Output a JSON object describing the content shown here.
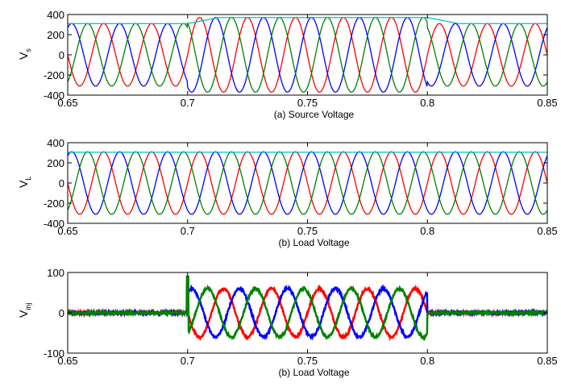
{
  "chart_data": [
    {
      "type": "line",
      "ylabel": "V",
      "ylabel_sub": "s",
      "caption": "(a) Source Voltage",
      "xlim": [
        0.65,
        0.85
      ],
      "ylim": [
        -400,
        400
      ],
      "xticks": [
        "0.65",
        "0.7",
        "0.75",
        "0.8",
        "0.85"
      ],
      "yticks": [
        "400",
        "200",
        "0",
        "-200",
        "-400"
      ],
      "grid": false,
      "waveform": {
        "frequency_hz": 50,
        "normal_amplitude": 310,
        "events": [
          {
            "t_start": 0.7,
            "t_end": 0.8,
            "amplitude": 370
          }
        ]
      },
      "series": [
        {
          "color": "#ff0000",
          "phase_deg": 0,
          "values": "three-phase sine"
        },
        {
          "color": "#0000ff",
          "phase_deg": -120,
          "values": "three-phase sine"
        },
        {
          "color": "#008000",
          "phase_deg": 120,
          "values": "three-phase sine"
        },
        {
          "color": "#00c0c0",
          "values": "envelope",
          "points": [
            [
              0.65,
              310
            ],
            [
              0.7,
              310
            ],
            [
              0.713,
              370
            ],
            [
              0.8,
              370
            ],
            [
              0.813,
              310
            ],
            [
              0.85,
              310
            ]
          ]
        }
      ]
    },
    {
      "type": "line",
      "ylabel": "V",
      "ylabel_sub": "L",
      "caption": "(b) Load Voltage",
      "xlim": [
        0.65,
        0.85
      ],
      "ylim": [
        -400,
        400
      ],
      "xticks": [
        "0.65",
        "0.7",
        "0.75",
        "0.8",
        "0.85"
      ],
      "yticks": [
        "400",
        "200",
        "0",
        "-200",
        "-400"
      ],
      "grid": false,
      "waveform": {
        "frequency_hz": 50,
        "normal_amplitude": 310,
        "events": []
      },
      "series": [
        {
          "color": "#ff0000",
          "phase_deg": 0,
          "values": "three-phase sine"
        },
        {
          "color": "#0000ff",
          "phase_deg": -120,
          "values": "three-phase sine"
        },
        {
          "color": "#008000",
          "phase_deg": 120,
          "values": "three-phase sine"
        },
        {
          "color": "#00c0c0",
          "values": "envelope",
          "points": [
            [
              0.65,
              305
            ],
            [
              0.85,
              305
            ]
          ]
        }
      ]
    },
    {
      "type": "line",
      "ylabel": "V",
      "ylabel_sub": "inj",
      "caption": "(b) Load Voltage",
      "xlim": [
        0.65,
        0.85
      ],
      "ylim": [
        -100,
        100
      ],
      "xticks": [
        "0.65",
        "0.7",
        "0.75",
        "0.8",
        "0.85"
      ],
      "yticks": [
        "100",
        "0",
        "-100"
      ],
      "grid": false,
      "waveform": {
        "frequency_hz": 50,
        "normal_amplitude": 0,
        "events": [
          {
            "t_start": 0.7,
            "t_end": 0.8,
            "amplitude": 60
          }
        ]
      },
      "series": [
        {
          "color": "#ff0000",
          "phase_deg": 180,
          "values": "injected three-phase sine"
        },
        {
          "color": "#0000ff",
          "phase_deg": 60,
          "values": "injected three-phase sine"
        },
        {
          "color": "#008000",
          "phase_deg": -60,
          "values": "injected three-phase sine"
        }
      ]
    }
  ]
}
